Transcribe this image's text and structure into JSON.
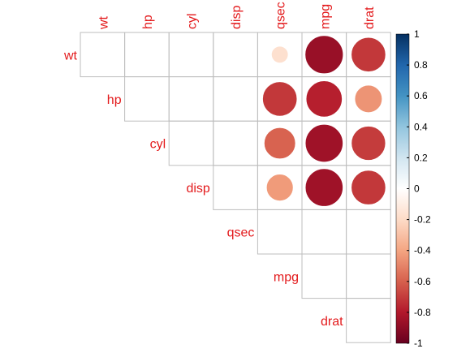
{
  "chart_data": {
    "type": "heatmap",
    "title": "",
    "variables": [
      "wt",
      "hp",
      "cyl",
      "disp",
      "qsec",
      "mpg",
      "drat"
    ],
    "layout": "upper-triangle",
    "method": "circle",
    "correlations": [
      {
        "row": "wt",
        "col": "qsec",
        "value": -0.17
      },
      {
        "row": "wt",
        "col": "mpg",
        "value": -0.87
      },
      {
        "row": "wt",
        "col": "drat",
        "value": -0.71
      },
      {
        "row": "hp",
        "col": "qsec",
        "value": -0.71
      },
      {
        "row": "hp",
        "col": "mpg",
        "value": -0.78
      },
      {
        "row": "hp",
        "col": "drat",
        "value": -0.45
      },
      {
        "row": "cyl",
        "col": "qsec",
        "value": -0.59
      },
      {
        "row": "cyl",
        "col": "mpg",
        "value": -0.85
      },
      {
        "row": "cyl",
        "col": "drat",
        "value": -0.7
      },
      {
        "row": "disp",
        "col": "qsec",
        "value": -0.43
      },
      {
        "row": "disp",
        "col": "mpg",
        "value": -0.85
      },
      {
        "row": "disp",
        "col": "drat",
        "value": -0.71
      }
    ],
    "colorbar": {
      "range": [
        -1,
        1
      ],
      "ticks": [
        "1",
        "0.8",
        "0.6",
        "0.4",
        "0.2",
        "0",
        "-0.2",
        "-0.4",
        "-0.6",
        "-0.8",
        "-1"
      ]
    },
    "colors": {
      "label": "#e31a1c",
      "grid": "#bebebe",
      "negative_extreme": "#67001f",
      "neutral": "#f7f7f7",
      "positive_extreme": "#053061"
    }
  }
}
